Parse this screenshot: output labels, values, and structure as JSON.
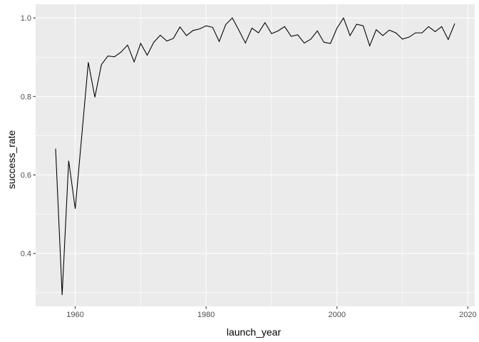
{
  "chart_data": {
    "type": "line",
    "title": "",
    "xlabel": "launch_year",
    "ylabel": "success_rate",
    "xlim": [
      1953.95,
      2021.05
    ],
    "ylim": [
      0.2652,
      1.0348
    ],
    "x_ticks": [
      1960,
      1980,
      2000,
      2020
    ],
    "x_tick_labels": [
      "1960",
      "1980",
      "2000",
      "2020"
    ],
    "y_ticks": [
      0.4,
      0.6,
      0.8,
      1.0
    ],
    "y_tick_labels": [
      "0.4",
      "0.6",
      "0.8",
      "1.0"
    ],
    "grid": true,
    "legend": "none",
    "colors": {
      "panel": "#ebebeb",
      "grid": "#ffffff",
      "line": "#000000",
      "tick_text": "#4d4d4d"
    },
    "series": [
      {
        "x": [
          1957,
          1958,
          1959,
          1960,
          1961,
          1962,
          1963,
          1964,
          1965,
          1966,
          1967,
          1968,
          1969,
          1970,
          1971,
          1972,
          1973,
          1974,
          1975,
          1976,
          1977,
          1978,
          1979,
          1980,
          1981,
          1982,
          1983,
          1984,
          1985,
          1986,
          1987,
          1988,
          1989,
          1990,
          1991,
          1992,
          1993,
          1994,
          1995,
          1996,
          1997,
          1998,
          1999,
          2000,
          2001,
          2002,
          2003,
          2004,
          2005,
          2006,
          2007,
          2008,
          2009,
          2010,
          2011,
          2012,
          2013,
          2014,
          2015,
          2016,
          2017,
          2018
        ],
        "values": [
          0.667,
          0.294,
          0.636,
          0.514,
          0.7,
          0.887,
          0.798,
          0.881,
          0.903,
          0.901,
          0.913,
          0.931,
          0.888,
          0.935,
          0.905,
          0.938,
          0.956,
          0.941,
          0.948,
          0.977,
          0.955,
          0.968,
          0.972,
          0.98,
          0.976,
          0.94,
          0.983,
          1.0,
          0.969,
          0.936,
          0.974,
          0.962,
          0.988,
          0.96,
          0.967,
          0.978,
          0.953,
          0.957,
          0.936,
          0.946,
          0.967,
          0.938,
          0.935,
          0.974,
          1.0,
          0.955,
          0.984,
          0.98,
          0.929,
          0.97,
          0.955,
          0.969,
          0.962,
          0.946,
          0.951,
          0.962,
          0.962,
          0.978,
          0.965,
          0.978,
          0.945,
          0.986
        ]
      }
    ]
  }
}
